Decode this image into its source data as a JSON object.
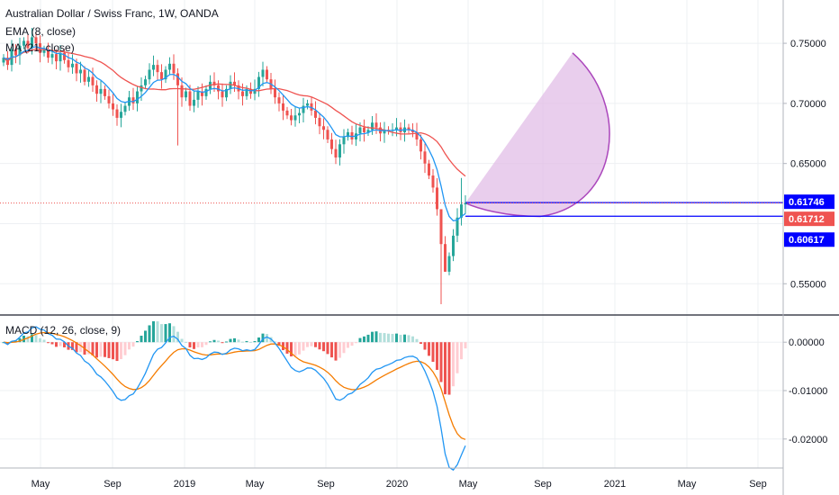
{
  "header": {
    "title": "Australian Dollar / Swiss Franc, 1W, OANDA",
    "ema_label": "EMA (8, close)",
    "ma_label": "MA (21, close)",
    "macd_label": "MACD (12, 26, close, 9)"
  },
  "colors": {
    "up": "#26a69a",
    "down": "#ef5350",
    "ema": "#2196f3",
    "ma": "#ef5350",
    "macd_line": "#2196f3",
    "signal_line": "#f57c00",
    "projection_fill": "#e1bee7",
    "projection_stroke": "#ab47bc",
    "level_line": "#0000ff",
    "grid": "#eef0f3",
    "border": "#b2b5be"
  },
  "price_axis": {
    "ticks": [
      "0.75000",
      "0.70000",
      "0.65000",
      "0.55000"
    ]
  },
  "price_tags": [
    {
      "text": "0.61746",
      "bg": "#0000ff"
    },
    {
      "text": "0.61712",
      "bg": "#ef5350"
    },
    {
      "text": "0.60617",
      "bg": "#0000ff"
    }
  ],
  "macd_axis": {
    "ticks": [
      "0.00000",
      "-0.01000",
      "-0.02000"
    ]
  },
  "time_axis": {
    "labels": [
      "May",
      "Sep",
      "2019",
      "May",
      "Sep",
      "2020",
      "May",
      "Sep",
      "2021",
      "May",
      "Sep"
    ]
  },
  "chart_data": {
    "type": "candlestick",
    "title": "Australian Dollar / Swiss Franc, 1W, OANDA",
    "timeframe": "1W",
    "ylim": [
      0.53,
      0.78
    ],
    "closes": [
      0.738,
      0.732,
      0.745,
      0.74,
      0.748,
      0.752,
      0.746,
      0.755,
      0.75,
      0.742,
      0.745,
      0.738,
      0.741,
      0.735,
      0.742,
      0.736,
      0.73,
      0.733,
      0.725,
      0.728,
      0.718,
      0.722,
      0.715,
      0.708,
      0.712,
      0.706,
      0.7,
      0.695,
      0.688,
      0.693,
      0.698,
      0.705,
      0.7,
      0.71,
      0.715,
      0.72,
      0.728,
      0.732,
      0.726,
      0.72,
      0.728,
      0.733,
      0.725,
      0.715,
      0.705,
      0.71,
      0.698,
      0.703,
      0.71,
      0.706,
      0.712,
      0.718,
      0.715,
      0.71,
      0.705,
      0.712,
      0.718,
      0.715,
      0.71,
      0.706,
      0.712,
      0.708,
      0.712,
      0.722,
      0.728,
      0.72,
      0.712,
      0.705,
      0.7,
      0.694,
      0.69,
      0.686,
      0.69,
      0.692,
      0.698,
      0.7,
      0.694,
      0.688,
      0.681,
      0.678,
      0.67,
      0.662,
      0.655,
      0.666,
      0.672,
      0.676,
      0.67,
      0.675,
      0.68,
      0.676,
      0.678,
      0.684,
      0.68,
      0.675,
      0.678,
      0.677,
      0.678,
      0.68,
      0.676,
      0.68,
      0.678,
      0.676,
      0.67,
      0.66,
      0.65,
      0.64,
      0.63,
      0.612,
      0.583,
      0.56,
      0.573,
      0.59,
      0.605,
      0.616,
      0.617
    ],
    "ema_period": 8,
    "ma_period": 21,
    "last_price": 0.61712,
    "levels": [
      0.61746,
      0.60617
    ],
    "macd": {
      "fast": 12,
      "slow": 26,
      "signal": 9,
      "ylim": [
        -0.0245,
        0.0045
      ]
    },
    "time_labels": [
      "May",
      "Sep",
      "2019",
      "May",
      "Sep",
      "2020",
      "May",
      "Sep",
      "2021",
      "May",
      "Sep"
    ]
  }
}
